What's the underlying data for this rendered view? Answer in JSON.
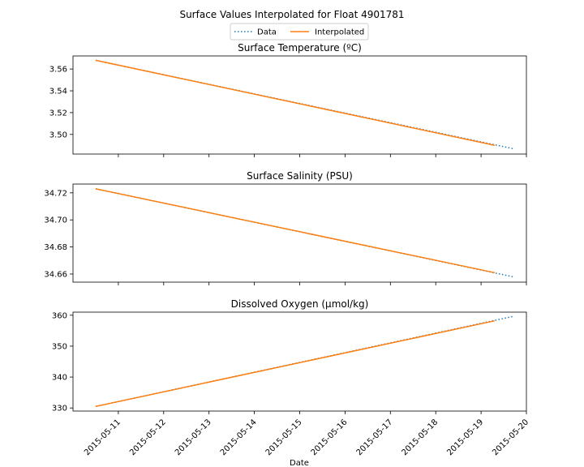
{
  "figure": {
    "title": "Surface Values Interpolated for Float 4901781",
    "xlabel": "Date",
    "legend": {
      "placement": "top-center",
      "entries": [
        {
          "label": "Data",
          "style": "dotted",
          "color": "#1f77b4"
        },
        {
          "label": "Interpolated",
          "style": "solid",
          "color": "#ff7f0e"
        }
      ]
    },
    "x_ticks": [
      "2015-05-11",
      "2015-05-12",
      "2015-05-13",
      "2015-05-14",
      "2015-05-15",
      "2015-05-16",
      "2015-05-17",
      "2015-05-18",
      "2015-05-19",
      "2015-05-20"
    ]
  },
  "chart_data": [
    {
      "type": "line",
      "title": "Surface Temperature (ºC)",
      "xlabel": "",
      "ylabel": "",
      "xlim": [
        "2015-05-10",
        "2015-05-20"
      ],
      "ylim": [
        3.482,
        3.572
      ],
      "y_ticks": [
        "3.50",
        "3.52",
        "3.54",
        "3.56"
      ],
      "grid": false,
      "series": [
        {
          "name": "Data",
          "x": [
            "2015-05-10 12:00",
            "2015-05-19 16:48"
          ],
          "values": [
            3.568,
            3.487
          ]
        },
        {
          "name": "Interpolated",
          "x": [
            "2015-05-10 12:00",
            "2015-05-19 07:12"
          ],
          "values": [
            3.568,
            3.49
          ]
        }
      ]
    },
    {
      "type": "line",
      "title": "Surface Salinity (PSU)",
      "xlabel": "",
      "ylabel": "",
      "xlim": [
        "2015-05-10",
        "2015-05-20"
      ],
      "ylim": [
        34.654,
        34.7265
      ],
      "y_ticks": [
        "34.66",
        "34.68",
        "34.70",
        "34.72"
      ],
      "grid": false,
      "series": [
        {
          "name": "Data",
          "x": [
            "2015-05-10 12:00",
            "2015-05-19 16:48"
          ],
          "values": [
            34.723,
            34.658
          ]
        },
        {
          "name": "Interpolated",
          "x": [
            "2015-05-10 12:00",
            "2015-05-19 07:12"
          ],
          "values": [
            34.723,
            34.661
          ]
        }
      ]
    },
    {
      "type": "line",
      "title": "Dissolved Oxygen (µmol/kg)",
      "xlabel": "Date",
      "ylabel": "",
      "xlim": [
        "2015-05-10",
        "2015-05-20"
      ],
      "ylim": [
        329.0,
        361.0
      ],
      "y_ticks": [
        "330",
        "340",
        "350",
        "360"
      ],
      "grid": false,
      "series": [
        {
          "name": "Data",
          "x": [
            "2015-05-10 12:00",
            "2015-05-19 16:48"
          ],
          "values": [
            330.5,
            359.6
          ]
        },
        {
          "name": "Interpolated",
          "x": [
            "2015-05-10 12:00",
            "2015-05-19 07:12"
          ],
          "values": [
            330.5,
            358.2
          ]
        }
      ]
    }
  ]
}
